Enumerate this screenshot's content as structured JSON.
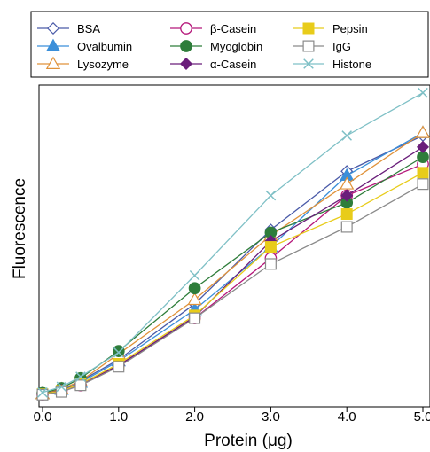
{
  "chart_data": {
    "type": "line",
    "title": "",
    "xlabel": "Protein (μg)",
    "ylabel": "Fluorescence",
    "xlim": [
      0,
      5
    ],
    "ylim": [
      0,
      100
    ],
    "xticks": [
      0,
      1,
      2,
      3,
      4,
      5
    ],
    "xtick_labels": [
      "0.0",
      "1.0",
      "2.0",
      "3.0",
      "4.0",
      "5.0"
    ],
    "y_tick_labels_shown": false,
    "grid": false,
    "legend_position": "top",
    "x": [
      0,
      0.25,
      0.5,
      1,
      2,
      3,
      4,
      5
    ],
    "series": [
      {
        "name": "BSA",
        "color": "#4a5aa8",
        "marker": "diamond-open",
        "values": [
          0.5,
          1.8,
          5.0,
          12.5,
          32.0,
          58.0,
          78.5,
          91.0
        ]
      },
      {
        "name": "Ovalbumin",
        "color": "#3b8fd9",
        "marker": "triangle-filled",
        "values": [
          0.5,
          2.0,
          4.5,
          12.0,
          30.0,
          52.0,
          77.0,
          92.0
        ]
      },
      {
        "name": "Lysozyme",
        "color": "#e0923a",
        "marker": "triangle-open",
        "values": [
          0.5,
          2.2,
          5.0,
          14.5,
          33.5,
          56.0,
          74.0,
          92.0
        ]
      },
      {
        "name": "β-Casein",
        "color": "#b5177a",
        "marker": "circle-open",
        "values": [
          0.3,
          1.5,
          3.5,
          10.5,
          27.0,
          48.0,
          70.0,
          81.0
        ]
      },
      {
        "name": "Myoglobin",
        "color": "#2e7d3a",
        "marker": "circle-filled",
        "values": [
          0.8,
          2.5,
          6.0,
          15.5,
          37.5,
          57.0,
          67.5,
          83.5
        ]
      },
      {
        "name": "α-Casein",
        "color": "#6a1e7a",
        "marker": "diamond-filled",
        "values": [
          0.4,
          1.8,
          4.0,
          10.5,
          27.5,
          54.0,
          70.0,
          87.0
        ]
      },
      {
        "name": "Pepsin",
        "color": "#e8cc1a",
        "marker": "square-filled",
        "values": [
          0.4,
          1.6,
          4.0,
          11.0,
          28.0,
          52.0,
          63.5,
          78.0
        ]
      },
      {
        "name": "IgG",
        "color": "#8a8a8a",
        "marker": "square-open",
        "values": [
          0.2,
          1.2,
          3.5,
          10.0,
          27.0,
          46.0,
          59.0,
          74.0
        ]
      },
      {
        "name": "Histone",
        "color": "#7fc0c6",
        "marker": "x",
        "values": [
          1.0,
          3.0,
          6.5,
          15.0,
          42.0,
          70.0,
          91.0,
          106.0
        ]
      }
    ]
  }
}
